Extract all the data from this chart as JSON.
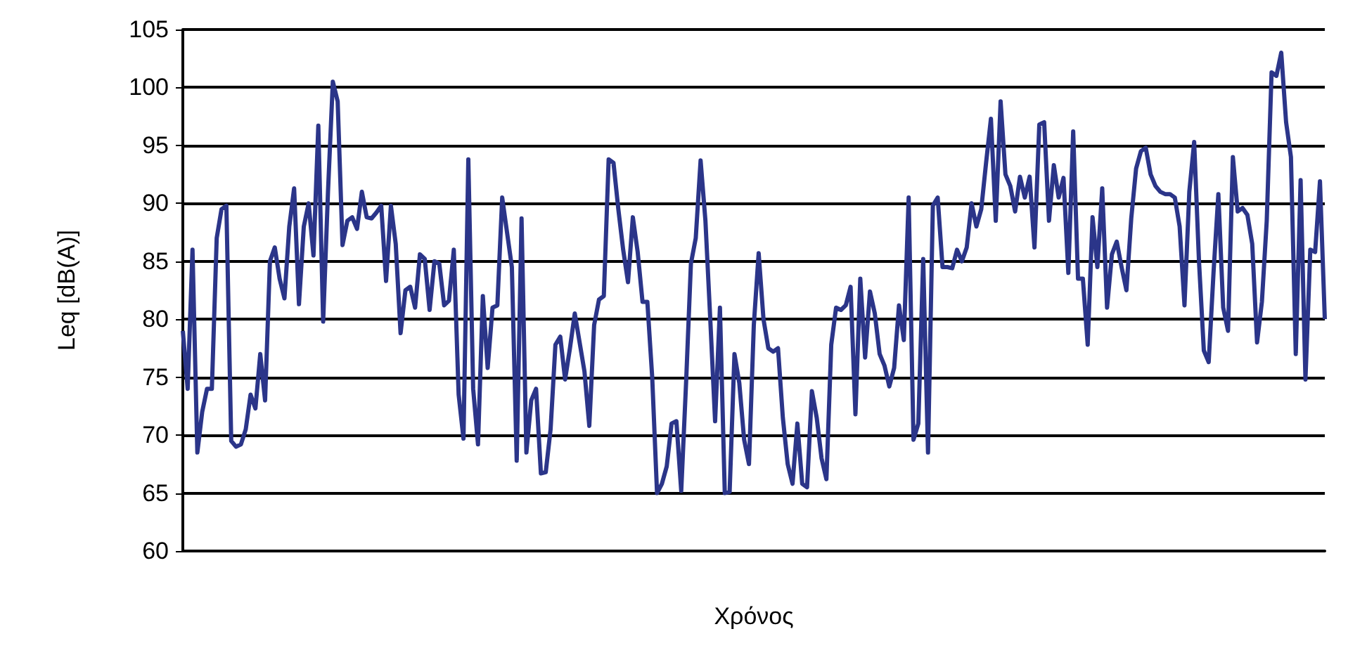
{
  "chart_data": {
    "type": "line",
    "xlabel": "Χρόνος",
    "ylabel": "Leq [dB(A)]",
    "categories": [
      null,
      null,
      null,
      null,
      null,
      null,
      null,
      null,
      null,
      null,
      null,
      null,
      null,
      null,
      null,
      null,
      null,
      null,
      null,
      null,
      null,
      null,
      null,
      null,
      null,
      null,
      null,
      null,
      null,
      null,
      null,
      null,
      null,
      null,
      null,
      null,
      null,
      null,
      null,
      null,
      null,
      null,
      null,
      null,
      null,
      null,
      null,
      null,
      null,
      null,
      null,
      null,
      null,
      null,
      null,
      null,
      null,
      null,
      null,
      null,
      null,
      null,
      null,
      null,
      null,
      null,
      null,
      null,
      null,
      null,
      null,
      null,
      null,
      null,
      null,
      null,
      null,
      null,
      null,
      null,
      null,
      null,
      null,
      null,
      null,
      null,
      null,
      null,
      null,
      null,
      null,
      null,
      null,
      null,
      null,
      null,
      null,
      null,
      null,
      null,
      null,
      null,
      null,
      null,
      null,
      null,
      null,
      null,
      null,
      null,
      null,
      null,
      null,
      null,
      null,
      null,
      null,
      null,
      null,
      null,
      null,
      null,
      null,
      null,
      null,
      null,
      null,
      null,
      null,
      null,
      null,
      null,
      null,
      null,
      null,
      null,
      null,
      null,
      null,
      null,
      null,
      null,
      null,
      null,
      null,
      null,
      null,
      null,
      null,
      null,
      null,
      null,
      null,
      null,
      null,
      null,
      null,
      null,
      null,
      null,
      null,
      null,
      null,
      null,
      null,
      null,
      null,
      null,
      null,
      null,
      null,
      null,
      null,
      null,
      null,
      null,
      null,
      null,
      null,
      null,
      null,
      null,
      null,
      null,
      null,
      null,
      null,
      null,
      null,
      null,
      null,
      null,
      null,
      null,
      null,
      null,
      null,
      null,
      null,
      null,
      null,
      null,
      null,
      null,
      null,
      null,
      null,
      null,
      null,
      null,
      null,
      null,
      null,
      null,
      null,
      null,
      null,
      null,
      null,
      null,
      null,
      null,
      null,
      null,
      null,
      null,
      null,
      null,
      null,
      null,
      null,
      null,
      null,
      null,
      null,
      null,
      null
    ],
    "series": [
      {
        "color": "#2b3589",
        "values": [
          79,
          74,
          86,
          68.5,
          72,
          74,
          74,
          87,
          89.5,
          89.8,
          69.5,
          69,
          69.2,
          70.5,
          73.5,
          72.3,
          77,
          73,
          85,
          86.2,
          83.5,
          81.8,
          88,
          91.3,
          81.3,
          88,
          90,
          85.5,
          96.7,
          79.8,
          91,
          100.5,
          98.8,
          86.4,
          88.5,
          88.8,
          87.8,
          91,
          88.8,
          88.7,
          89.2,
          89.8,
          83.3,
          89.8,
          86.5,
          78.8,
          82.5,
          82.8,
          81,
          85.6,
          85.2,
          80.8,
          85,
          84.8,
          81.2,
          81.6,
          86,
          73.5,
          69.7,
          93.8,
          74,
          69.2,
          82,
          75.8,
          81,
          81.2,
          90.5,
          87.5,
          84.5,
          67.8,
          88.7,
          68.5,
          73,
          74,
          66.7,
          66.8,
          70.5,
          77.8,
          78.5,
          74.8,
          77.5,
          80.5,
          78,
          75.5,
          70.8,
          79.5,
          81.7,
          82,
          93.8,
          93.5,
          89.5,
          86,
          83.2,
          88.8,
          85.8,
          81.5,
          81.5,
          75,
          65,
          65.8,
          67.3,
          71,
          71.2,
          65.2,
          74.5,
          84.8,
          87,
          93.7,
          88.5,
          80,
          71.2,
          81,
          65,
          65.1,
          77,
          74.5,
          69.6,
          67.5,
          79.5,
          85.7,
          80,
          77.5,
          77.2,
          77.5,
          71.5,
          67.5,
          65.8,
          71,
          65.8,
          65.5,
          73.8,
          71.5,
          68,
          66.2,
          77.8,
          81,
          80.8,
          81.2,
          82.8,
          71.8,
          83.5,
          76.7,
          82.4,
          80.5,
          77,
          76,
          74.2,
          75.8,
          81.2,
          78.2,
          90.5,
          69.6,
          71,
          85.2,
          68.5,
          89.8,
          90.5,
          84.5,
          84.5,
          84.4,
          86,
          85,
          86.2,
          90,
          88,
          89.5,
          93.5,
          97.3,
          88.5,
          98.8,
          92.5,
          91.5,
          89.3,
          92.3,
          90.5,
          92.3,
          86.2,
          96.8,
          97,
          88.5,
          93.3,
          90.5,
          92.2,
          84,
          96.2,
          83.5,
          83.5,
          77.8,
          88.8,
          84.5,
          91.3,
          81,
          85.6,
          86.7,
          84.5,
          82.5,
          88.7,
          93,
          94.5,
          94.8,
          92.5,
          91.5,
          91,
          90.8,
          90.8,
          90.5,
          88,
          81.2,
          91,
          95.3,
          85,
          77.3,
          76.3,
          84,
          90.8,
          81,
          79,
          94,
          89.3,
          89.6,
          89,
          86.5,
          78,
          81.5,
          88.5,
          101.3,
          101,
          103,
          97,
          94,
          77,
          92,
          74.8,
          86,
          85.8,
          91.9,
          80
        ]
      }
    ],
    "ylim": [
      60,
      105
    ],
    "yticks": [
      60,
      65,
      70,
      75,
      80,
      85,
      90,
      95,
      100,
      105
    ],
    "grid": "y",
    "tick_labels": "y",
    "line_style": "solid"
  }
}
